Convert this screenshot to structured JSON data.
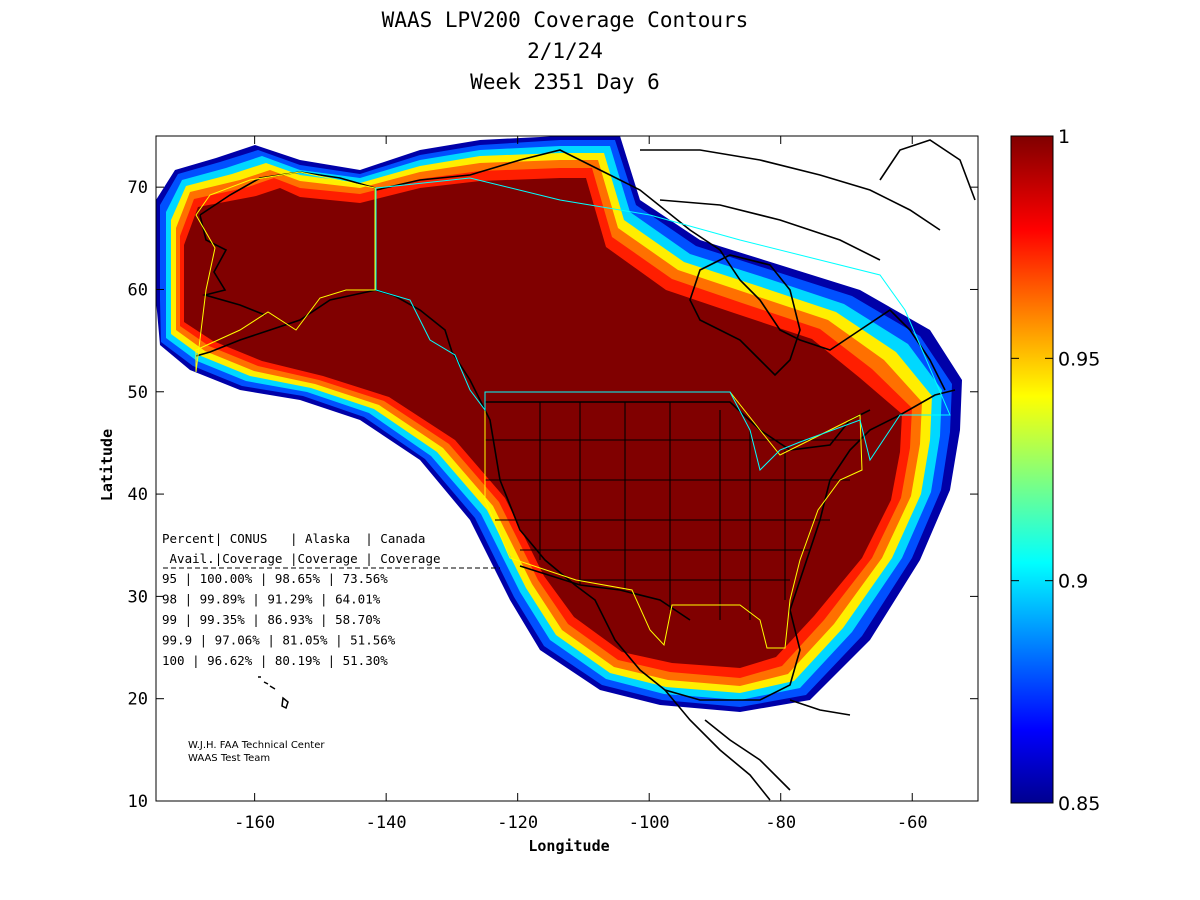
{
  "chart_data": {
    "type": "heatmap",
    "title_lines": [
      "WAAS LPV200 Coverage Contours",
      "2/1/24",
      "Week 2351 Day 6"
    ],
    "xlabel": "Longitude",
    "ylabel": "Latitude",
    "xlim": [
      -175,
      -50
    ],
    "ylim": [
      10,
      75
    ],
    "xticks": [
      -160,
      -140,
      -120,
      -100,
      -80,
      -60
    ],
    "yticks": [
      10,
      20,
      30,
      40,
      50,
      60,
      70
    ],
    "colorbar": {
      "range": [
        0.85,
        1
      ],
      "ticks": [
        0.85,
        0.9,
        0.95,
        1
      ],
      "tick_labels": [
        "0.85",
        "0.9",
        "0.95",
        "1"
      ],
      "colormap": "jet"
    },
    "coverage_table": {
      "header1": [
        "Percent",
        "CONUS",
        "Alaska",
        "Canada"
      ],
      "header2": [
        "Avail.",
        "Coverage",
        "Coverage",
        "Coverage"
      ],
      "rows": [
        {
          "pct": "95",
          "conus": "100.00%",
          "alaska": "98.65%",
          "canada": "73.56%"
        },
        {
          "pct": "98",
          "conus": "99.89%",
          "alaska": "91.29%",
          "canada": "64.01%"
        },
        {
          "pct": "99",
          "conus": "99.35%",
          "alaska": "86.93%",
          "canada": "58.70%"
        },
        {
          "pct": "99.9",
          "conus": "97.06%",
          "alaska": "81.05%",
          "canada": "51.56%"
        },
        {
          "pct": "100",
          "conus": "96.62%",
          "alaska": "80.19%",
          "canada": "51.30%"
        }
      ]
    },
    "credit": [
      "W.J.H. FAA Technical Center",
      "WAAS Test Team"
    ]
  }
}
